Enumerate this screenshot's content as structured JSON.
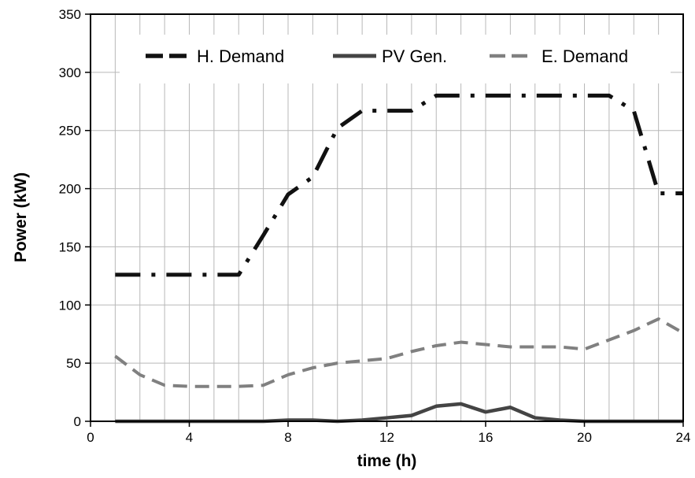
{
  "chart_data": {
    "type": "line",
    "title": "",
    "xlabel": "time (h)",
    "ylabel": "Power (kW)",
    "xlim": [
      0,
      24
    ],
    "ylim": [
      0,
      350
    ],
    "x_ticks": [
      0,
      4,
      8,
      12,
      16,
      20,
      24
    ],
    "y_ticks": [
      0,
      50,
      100,
      150,
      200,
      250,
      300,
      350
    ],
    "grid": "vertical lines at every hour, horizontal lines at every 50 kW",
    "legend_position": "top",
    "x": [
      1,
      2,
      3,
      4,
      5,
      6,
      7,
      8,
      9,
      10,
      11,
      12,
      13,
      14,
      15,
      16,
      17,
      18,
      19,
      20,
      21,
      22,
      23,
      24
    ],
    "series": [
      {
        "name": "H. Demand",
        "style": "dash-dot",
        "color": "#111111",
        "values": [
          126,
          126,
          126,
          126,
          126,
          126,
          160,
          195,
          210,
          252,
          267,
          267,
          267,
          280,
          280,
          280,
          280,
          280,
          280,
          280,
          280,
          267,
          196,
          196
        ]
      },
      {
        "name": "PV Gen.",
        "style": "solid",
        "color": "#444444",
        "values": [
          0,
          0,
          0,
          0,
          0,
          0,
          0,
          1,
          1,
          0,
          1,
          3,
          5,
          13,
          15,
          8,
          12,
          3,
          1,
          0,
          0,
          0,
          0,
          0
        ]
      },
      {
        "name": "E. Demand",
        "style": "dashed",
        "color": "#808080",
        "values": [
          56,
          40,
          31,
          30,
          30,
          30,
          31,
          40,
          46,
          50,
          52,
          54,
          60,
          65,
          68,
          66,
          64,
          64,
          64,
          62,
          70,
          78,
          88,
          76
        ]
      }
    ]
  }
}
